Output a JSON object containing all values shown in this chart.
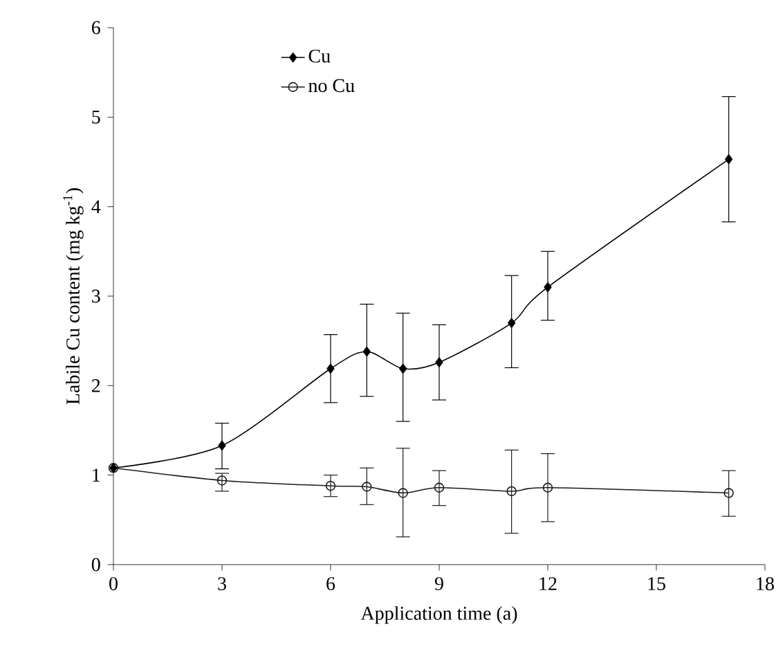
{
  "chart_data": {
    "type": "line",
    "xlabel": "Application time (a)",
    "ylabel": "Labile Cu content (mg kg$^{-1}$)",
    "x": [
      0,
      3,
      6,
      7,
      8,
      9,
      11,
      12,
      17
    ],
    "series": [
      {
        "name": "Cu",
        "color": "#000000",
        "marker": "diamond",
        "values": [
          1.08,
          1.33,
          2.19,
          2.38,
          2.19,
          2.26,
          2.7,
          3.1,
          4.53
        ],
        "errors": [
          null,
          [
            1.07,
            1.58
          ],
          [
            1.81,
            2.57
          ],
          [
            1.88,
            2.91
          ],
          [
            1.6,
            2.81
          ],
          [
            1.84,
            2.68
          ],
          [
            2.2,
            3.23
          ],
          [
            2.73,
            3.5
          ],
          [
            3.83,
            5.23
          ]
        ]
      },
      {
        "name": "no Cu",
        "color": "#1a1a1a",
        "marker": "circle",
        "values": [
          1.08,
          0.94,
          0.88,
          0.87,
          0.8,
          0.86,
          0.82,
          0.86,
          0.8
        ],
        "errors": [
          null,
          [
            0.82,
            1.02
          ],
          [
            0.76,
            1.0
          ],
          [
            0.67,
            1.08
          ],
          [
            0.31,
            1.3
          ],
          [
            0.66,
            1.05
          ],
          [
            0.35,
            1.28
          ],
          [
            0.48,
            1.24
          ],
          [
            0.54,
            1.05
          ]
        ]
      }
    ],
    "xlim": [
      0,
      18
    ],
    "xticks": [
      0,
      3,
      6,
      9,
      12,
      15,
      18
    ],
    "ylim": [
      0,
      6
    ],
    "yticks": [
      0,
      1,
      2,
      3,
      4,
      5,
      6
    ],
    "grid": false,
    "legend": "top left",
    "line_style": "solid"
  }
}
